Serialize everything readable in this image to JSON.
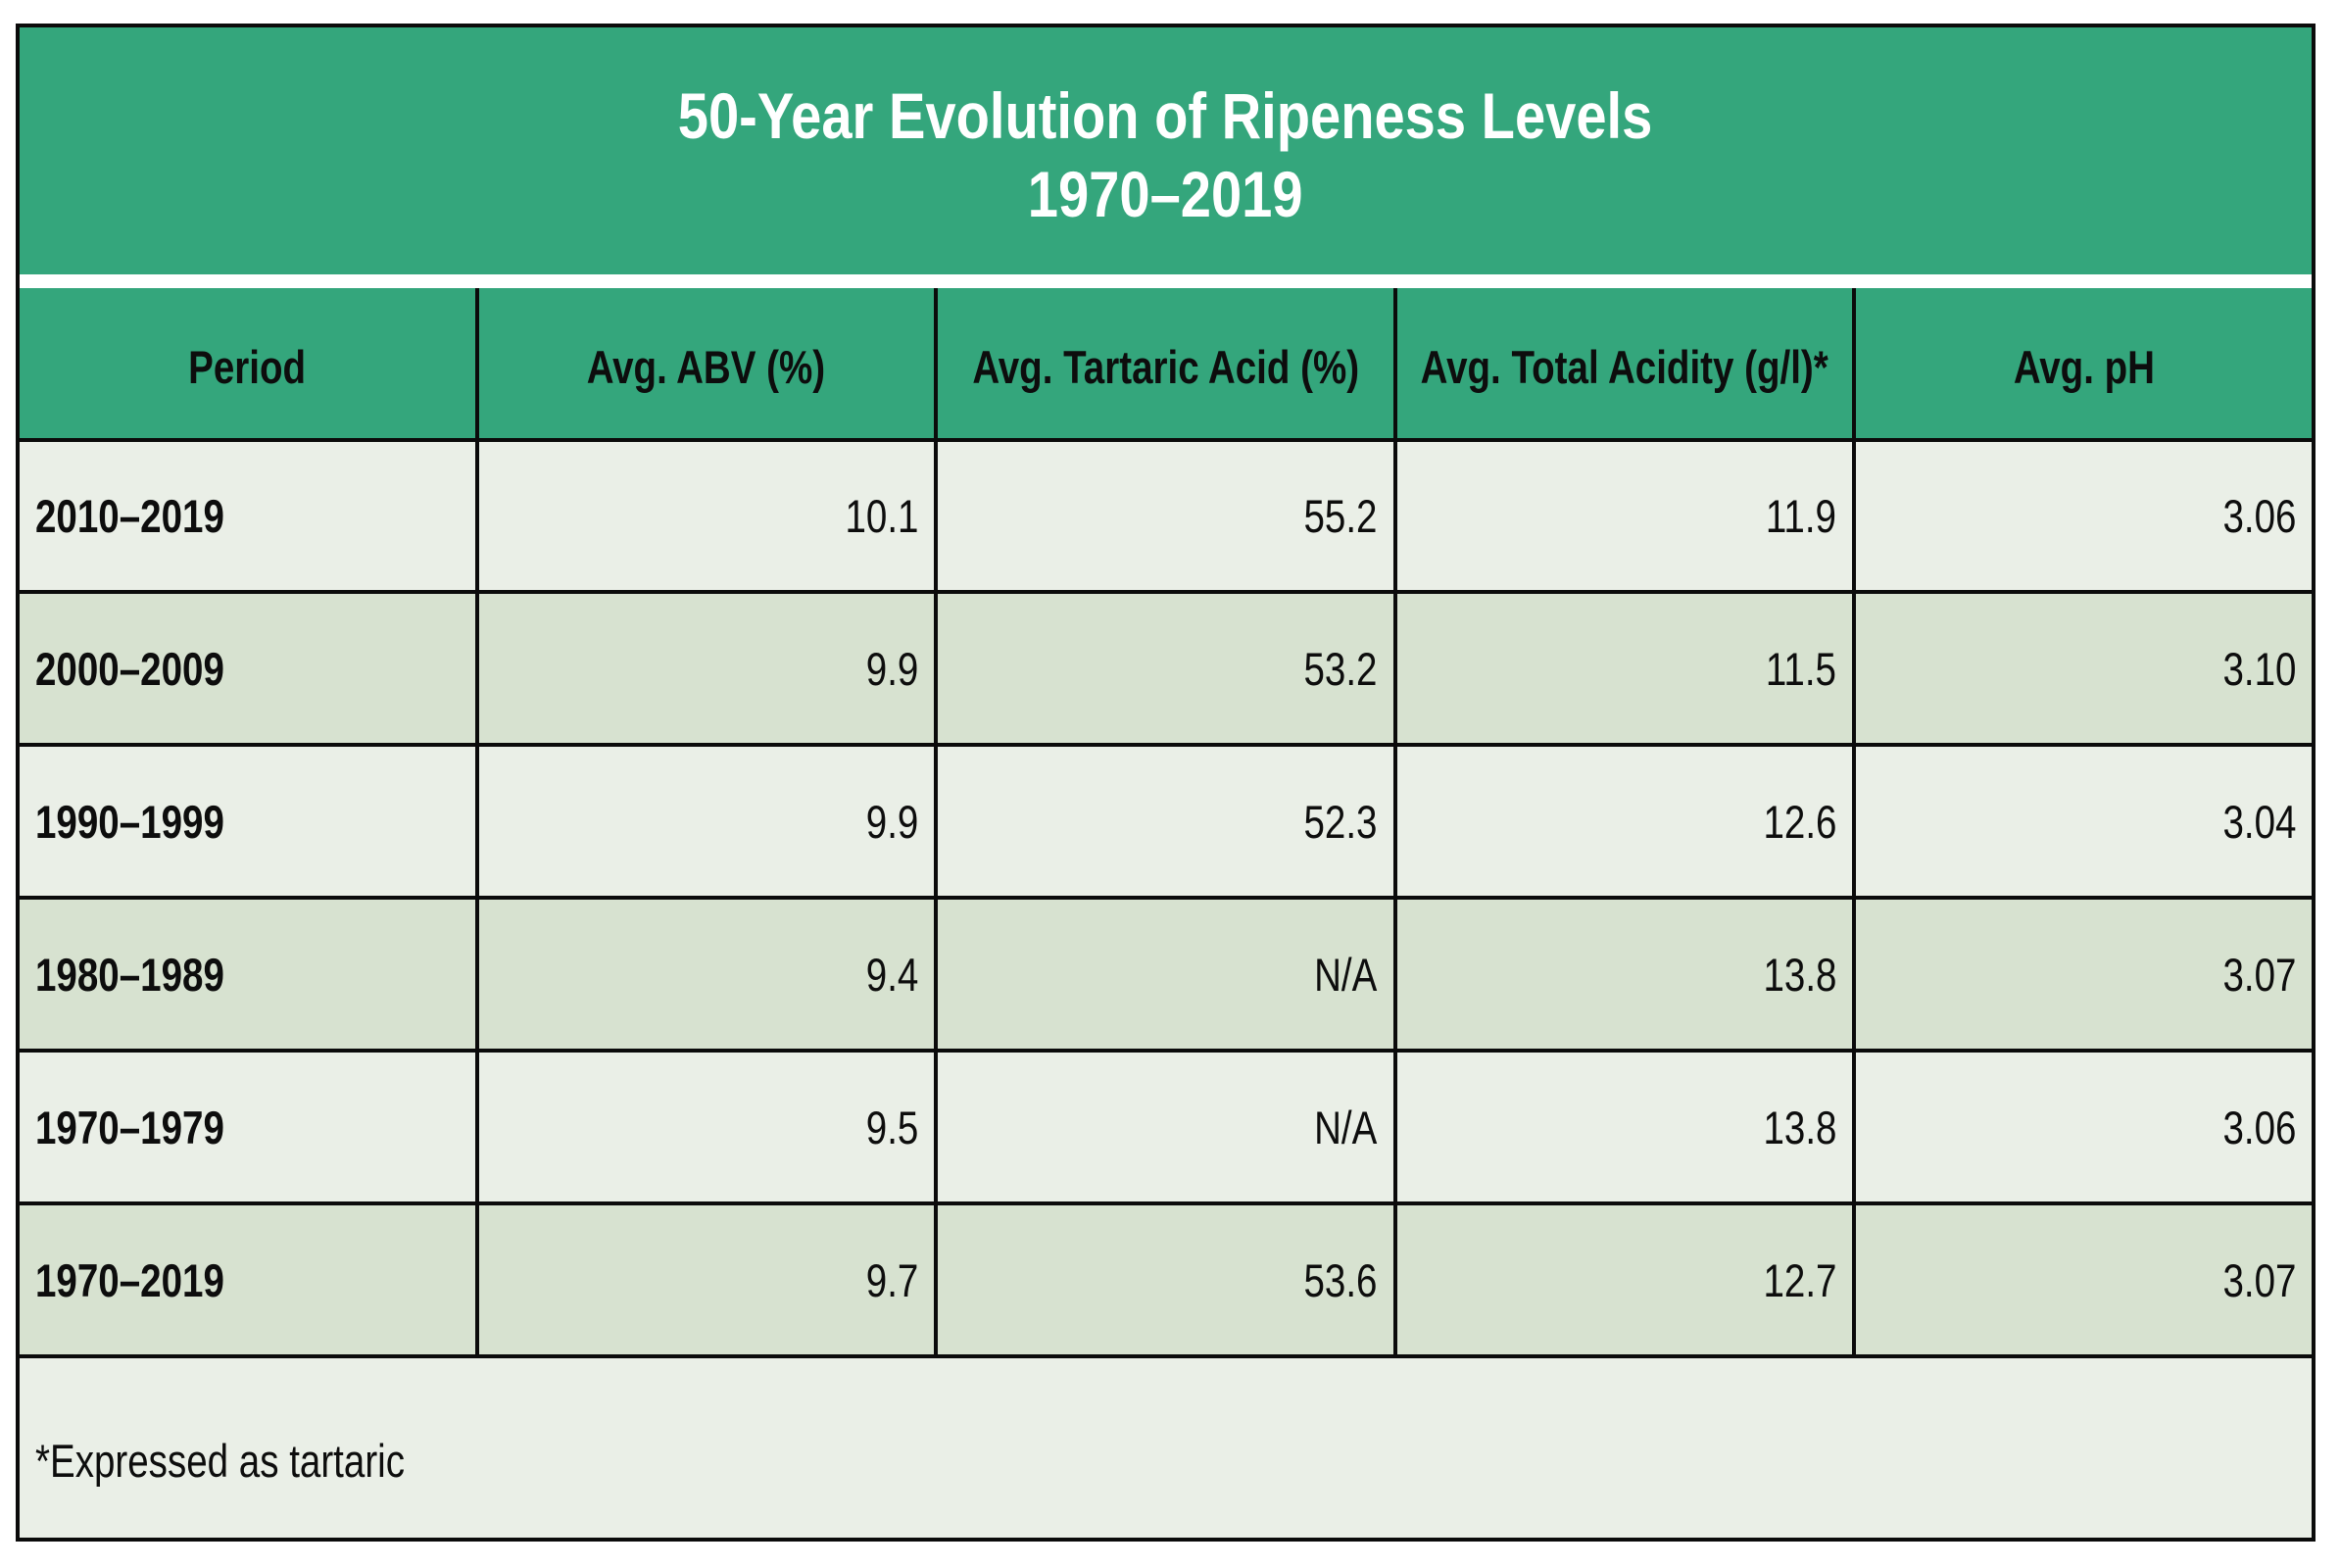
{
  "title": {
    "line1": "50-Year Evolution of Ripeness Levels",
    "line2": "1970–2019"
  },
  "colors": {
    "banner_green": "#34a67c",
    "header_green": "#34a67c",
    "row_light": "#eaefe7",
    "row_dark": "#d7e2d0",
    "grid_line": "#0b0b0b",
    "title_text": "#ffffff",
    "body_text": "#0d0d0d"
  },
  "chart_data": {
    "type": "table",
    "title": "50-Year Evolution of Ripeness Levels 1970–2019",
    "columns": [
      "Period",
      "Avg. ABV (%)",
      "Avg. Tartaric Acid (%)",
      "Avg. Total Acidity (g/l)*",
      "Avg. pH"
    ],
    "rows": [
      [
        "2010–2019",
        "10.1",
        "55.2",
        "11.9",
        "3.06"
      ],
      [
        "2000–2009",
        "9.9",
        "53.2",
        "11.5",
        "3.10"
      ],
      [
        "1990–1999",
        "9.9",
        "52.3",
        "12.6",
        "3.04"
      ],
      [
        "1980–1989",
        "9.4",
        "N/A",
        "13.8",
        "3.07"
      ],
      [
        "1970–1979",
        "9.5",
        "N/A",
        "13.8",
        "3.06"
      ],
      [
        "1970–2019",
        "9.7",
        "53.6",
        "12.7",
        "3.07"
      ]
    ],
    "footnote": "*Expressed as tartaric"
  }
}
